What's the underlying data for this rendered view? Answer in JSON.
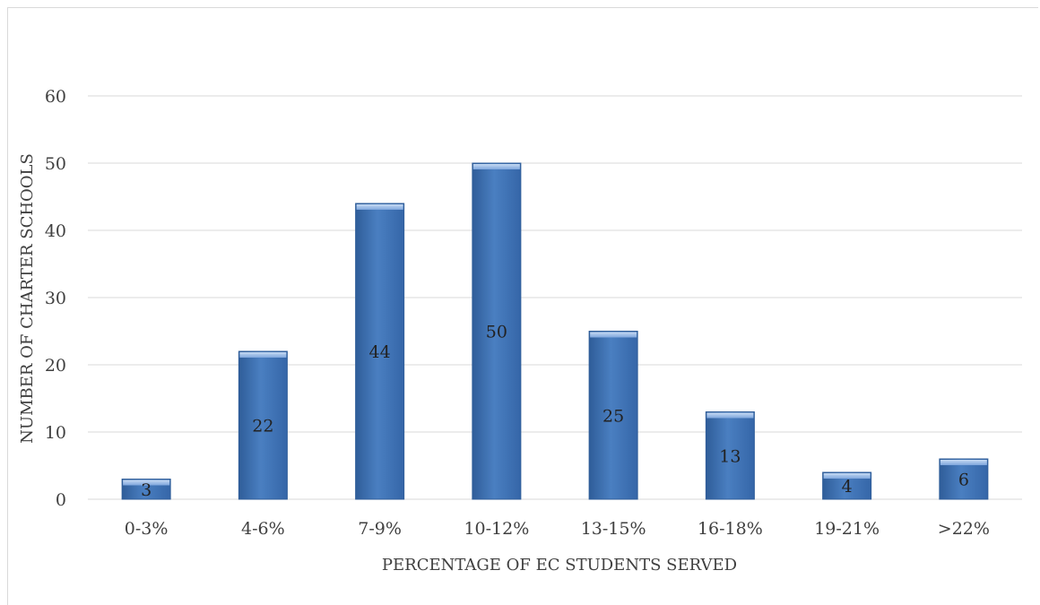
{
  "chart_data": {
    "type": "bar",
    "title": "",
    "xlabel": "PERCENTAGE OF EC STUDENTS SERVED",
    "ylabel": "NUMBER OF CHARTER SCHOOLS",
    "categories": [
      "0-3%",
      "4-6%",
      "7-9%",
      "10-12%",
      "13-15%",
      "16-18%",
      "19-21%",
      ">22%"
    ],
    "values": [
      3,
      22,
      44,
      50,
      25,
      13,
      4,
      6
    ],
    "ylim": [
      0,
      60
    ],
    "yticks": [
      0,
      10,
      20,
      30,
      40,
      50,
      60
    ],
    "grid": true,
    "legend": "none",
    "colors": {
      "bar": "#4a7fc1",
      "bar_dark": "#2f5d99",
      "bar_light": "#8fb4e3",
      "grid": "#d9d9d9",
      "text": "#404040"
    }
  }
}
